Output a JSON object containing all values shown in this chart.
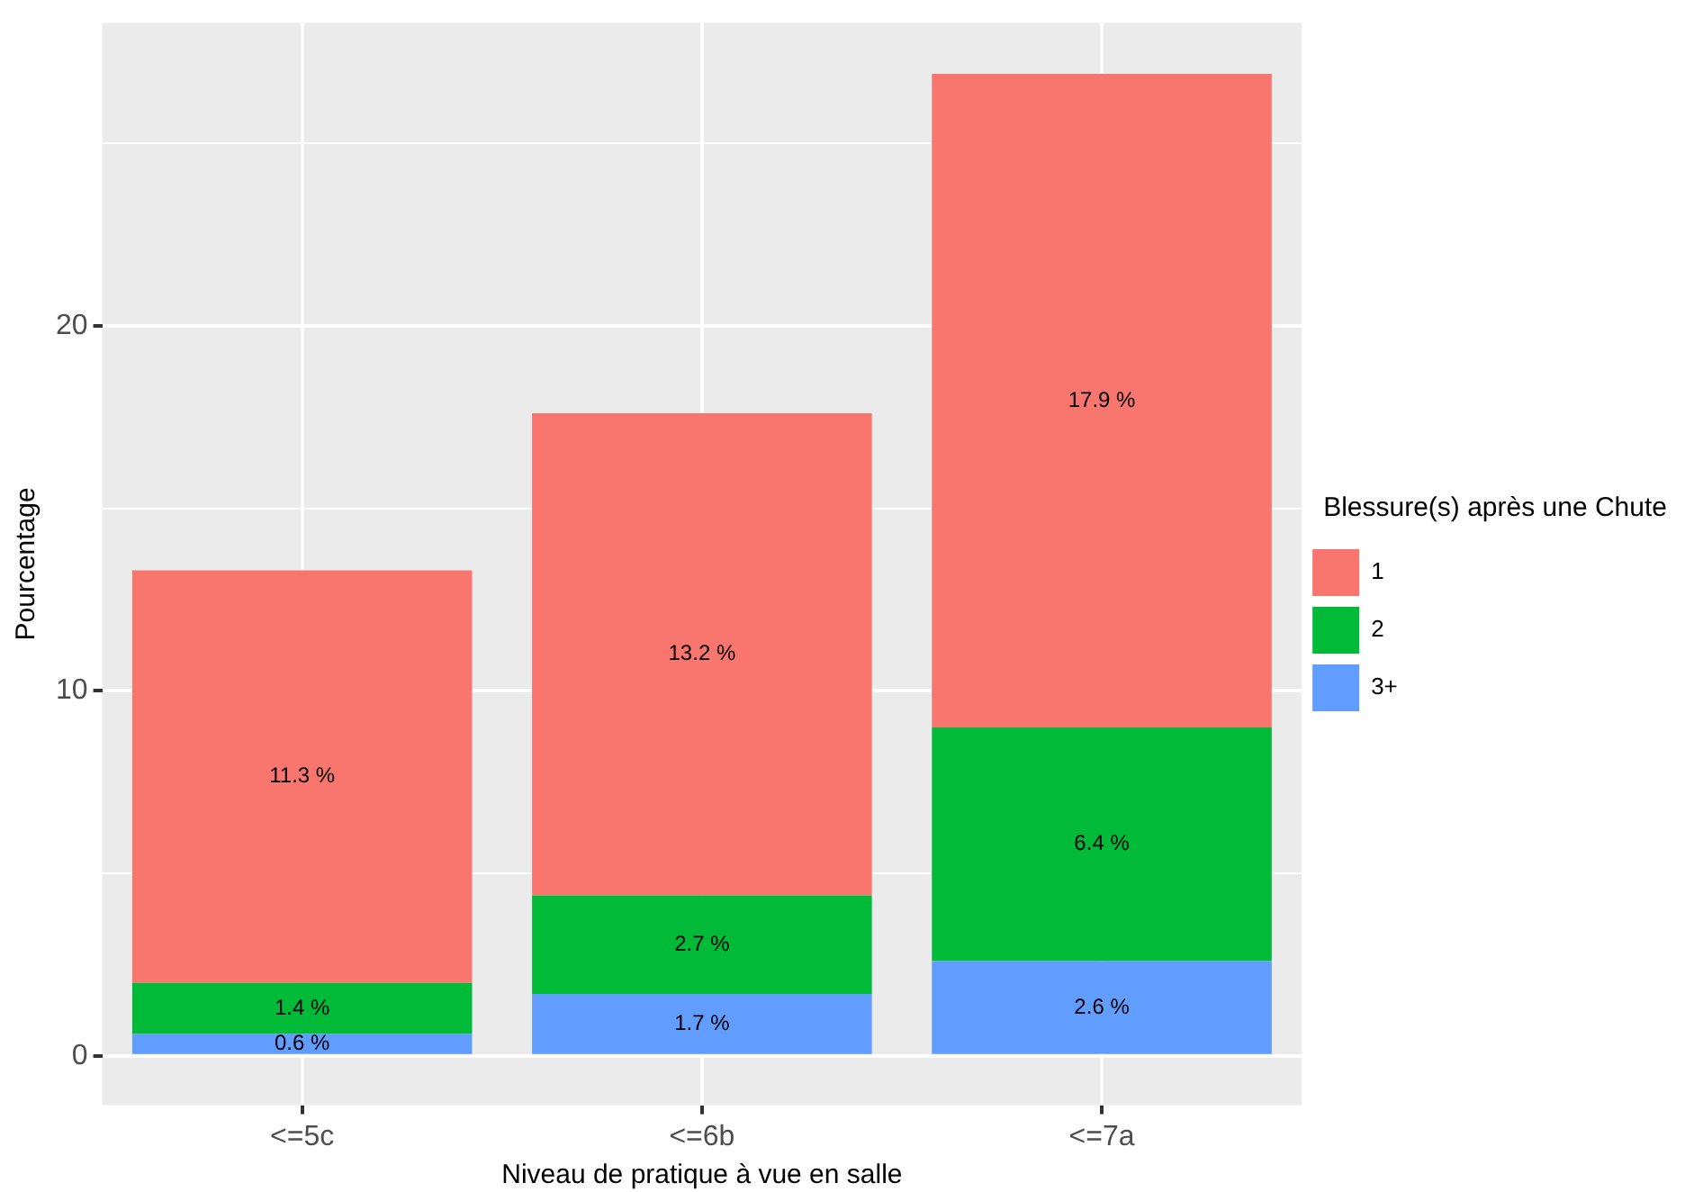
{
  "chart_data": {
    "type": "bar",
    "stacked": true,
    "xlabel": "Niveau de pratique à vue en salle",
    "ylabel": "Pourcentage",
    "legend_title": "Blessure(s) après une Chute",
    "legend": "right",
    "grid": true,
    "categories": [
      "<=5c",
      "<=6b",
      "<=7a"
    ],
    "ylim": [
      -1.35,
      28.3
    ],
    "yticks": [
      0,
      {
        "value": 5,
        "label": null
      },
      10,
      {
        "value": 15,
        "label": null
      },
      20,
      {
        "value": 25,
        "label": null
      }
    ],
    "series": [
      {
        "name": "3+",
        "color": "#619cff",
        "values": [
          0.6,
          1.7,
          2.6
        ],
        "value_labels": [
          "0.6 %",
          "1.7 %",
          "2.6 %"
        ]
      },
      {
        "name": "2",
        "color": "#00ba38",
        "values": [
          1.4,
          2.7,
          6.4
        ],
        "value_labels": [
          "1.4 %",
          "2.7 %",
          "6.4 %"
        ]
      },
      {
        "name": "1",
        "color": "#f8766d",
        "values": [
          11.3,
          13.2,
          17.9
        ],
        "value_labels": [
          "11.3 %",
          "13.2 %",
          "17.9 %"
        ]
      }
    ]
  }
}
